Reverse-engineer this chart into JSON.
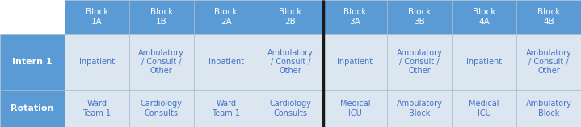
{
  "header_row": [
    "",
    "Block\n1A",
    "Block\n1B",
    "Block\n2A",
    "Block\n2B",
    "Block\n3A",
    "Block\n3B",
    "Block\n4A",
    "Block\n4B"
  ],
  "intern_row": [
    "Intern 1",
    "Inpatient",
    "Ambulatory\n/ Consult /\nOther",
    "Inpatient",
    "Ambulatory\n/ Consult /\nOther",
    "Inpatient",
    "Ambulatory\n/ Consult /\nOther",
    "Inpatient",
    "Ambulatory\n/ Consult /\nOther"
  ],
  "rotation_row": [
    "Rotation",
    "Ward\nTeam 1",
    "Cardiology\nConsults",
    "Ward\nTeam 1",
    "Cardiology\nConsults",
    "Medical\nICU",
    "Ambulatory\nBlock",
    "Medical\nICU",
    "Ambulatory\nBlock"
  ],
  "header_bg": "#5b9bd5",
  "header_text": "#ffffff",
  "label_col_bg": "#5b9bd5",
  "label_col_text": "#ffffff",
  "body_bg": "#dce6f1",
  "body_text_color": "#4472c4",
  "divider_color": "#1a1a1a",
  "fig_bg": "#ffffff",
  "cell_border": "#aab8d0",
  "fig_w": 7.19,
  "fig_h": 1.58,
  "dpi": 100
}
